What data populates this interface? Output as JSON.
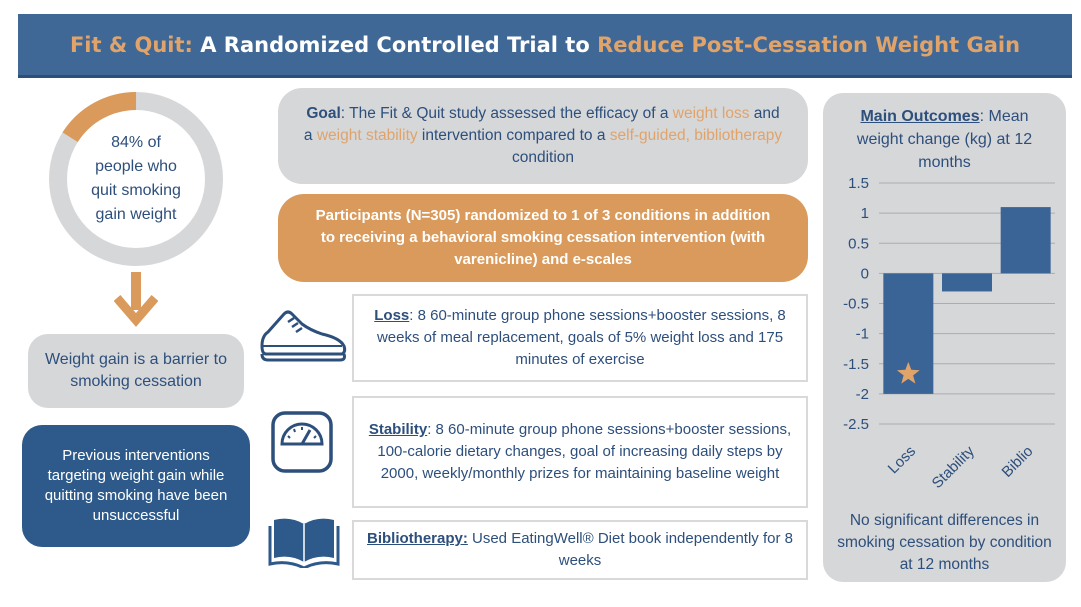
{
  "header": {
    "title_part1": "Fit & Quit:",
    "title_part2": " A Randomized Controlled Trial to ",
    "title_part3": "Reduce Post-Cessation Weight Gain"
  },
  "left": {
    "donut_text": "84% of people who quit smoking gain weight",
    "donut_percent": 84,
    "barrier_text": "Weight gain is a barrier to smoking cessation",
    "previous_text": "Previous interventions targeting weight gain while quitting smoking have been unsuccessful"
  },
  "goal": {
    "label": "Goal",
    "t1": ": The Fit & Quit study assessed the efficacy of a ",
    "o1": "weight loss",
    "t2": " and a ",
    "o2": "weight stability",
    "t3": " intervention compared to a ",
    "o3": "self-guided,  bibliotherapy",
    "t4": " condition"
  },
  "participants": "Participants (N=305) randomized to 1 of 3 conditions in addition to receiving a behavioral smoking cessation intervention (with varenicline) and e-scales",
  "conditions": {
    "loss": {
      "label": "Loss",
      "text": ": 8 60-minute group phone sessions+booster sessions, 8 weeks of meal replacement, goals of 5% weight loss and 175 minutes of exercise"
    },
    "stability": {
      "label": "Stability",
      "text": ": 8 60-minute group phone sessions+booster sessions, 100-calorie dietary changes, goal of increasing daily steps by 2000, weekly/monthly prizes for maintaining baseline weight"
    },
    "biblio": {
      "label": "Bibliotherapy:",
      "text": " Used EatingWell® Diet book independently for 8 weeks"
    }
  },
  "icons": {
    "shoe": "sneaker-icon",
    "scale": "scale-icon",
    "book": "open-book-icon"
  },
  "outcomes": {
    "title_label": "Main Outcomes",
    "title_text": ": Mean weight change (kg) at 12 months",
    "footnote": "No significant differences in smoking cessation by condition at 12 months"
  },
  "colors": {
    "header_bg": "#3f6896",
    "orange": "#e0a36a",
    "navy": "#2d5a8a",
    "grey": "#d6d7d9",
    "bar": "#3a6496",
    "star": "#e0a36a"
  },
  "chart_data": {
    "type": "bar",
    "categories": [
      "Loss",
      "Stability",
      "Biblio"
    ],
    "values": [
      -2.0,
      -0.3,
      1.1
    ],
    "ylim": [
      -2.5,
      1.5
    ],
    "yticks": [
      "1.5",
      "1",
      "0.5",
      "0",
      "-0.5",
      "-1",
      "-1.5",
      "-2",
      "-2.5"
    ],
    "ytick_values": [
      1.5,
      1,
      0.5,
      0,
      -0.5,
      -1,
      -1.5,
      -2,
      -2.5
    ],
    "grid": true,
    "annotation": "star on Loss bar"
  }
}
